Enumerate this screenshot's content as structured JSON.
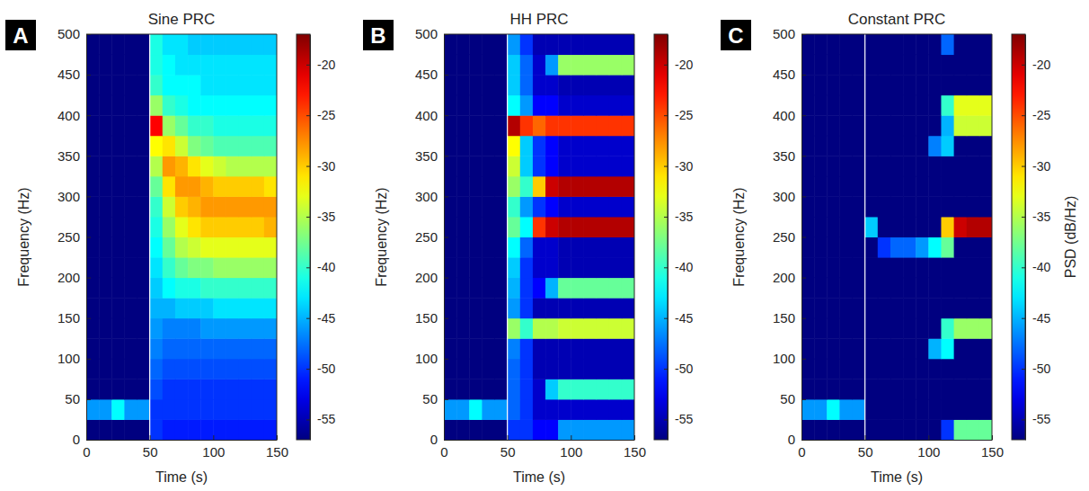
{
  "chart_data": [
    {
      "type": "heatmap",
      "panel": "A",
      "title": "Sine PRC",
      "x_label": "Time (s)",
      "y_label": "Frequency (Hz)",
      "xlim": [
        0,
        150
      ],
      "xticks": [
        0,
        50,
        100,
        150
      ],
      "ylim": [
        0,
        500
      ],
      "yticks": [
        0,
        50,
        100,
        150,
        200,
        250,
        300,
        350,
        400,
        450,
        500
      ],
      "vline": 50,
      "x": [
        5,
        15,
        25,
        35,
        45,
        55,
        65,
        75,
        85,
        95,
        105,
        115,
        125,
        135,
        145
      ],
      "y": [
        12.5,
        37.5,
        62.5,
        87.5,
        112.5,
        137.5,
        162.5,
        187.5,
        212.5,
        237.5,
        262.5,
        287.5,
        312.5,
        337.5,
        362.5,
        387.5,
        412.5,
        437.5,
        462.5,
        487.5
      ],
      "z": [
        [
          -57,
          -57,
          -57,
          -57,
          -57,
          -50,
          -51,
          -51,
          -51,
          -51,
          -51,
          -51,
          -51,
          -51,
          -51
        ],
        [
          -46,
          -46,
          -42,
          -46,
          -46,
          -50,
          -50,
          -50,
          -50,
          -50,
          -50,
          -50,
          -50,
          -50,
          -50
        ],
        [
          -57,
          -57,
          -57,
          -57,
          -57,
          -49,
          -50,
          -50,
          -50,
          -50,
          -50,
          -50,
          -50,
          -50,
          -50
        ],
        [
          -57,
          -57,
          -57,
          -57,
          -57,
          -48,
          -49,
          -49,
          -49,
          -49,
          -49,
          -49,
          -49,
          -49,
          -49
        ],
        [
          -57,
          -57,
          -57,
          -57,
          -57,
          -47,
          -48,
          -48,
          -48,
          -48,
          -48,
          -48,
          -48,
          -48,
          -48
        ],
        [
          -57,
          -57,
          -57,
          -57,
          -57,
          -46,
          -47,
          -47,
          -47,
          -46,
          -46,
          -46,
          -46,
          -46,
          -46
        ],
        [
          -57,
          -57,
          -57,
          -57,
          -57,
          -45,
          -45,
          -44,
          -44,
          -44,
          -43,
          -43,
          -43,
          -43,
          -43
        ],
        [
          -57,
          -57,
          -57,
          -57,
          -57,
          -44,
          -42,
          -41,
          -41,
          -40,
          -40,
          -40,
          -40,
          -40,
          -40
        ],
        [
          -57,
          -57,
          -57,
          -57,
          -57,
          -43,
          -40,
          -38,
          -37,
          -37,
          -36,
          -36,
          -36,
          -36,
          -36
        ],
        [
          -57,
          -57,
          -57,
          -57,
          -57,
          -42,
          -38,
          -35,
          -34,
          -33,
          -33,
          -33,
          -33,
          -33,
          -33
        ],
        [
          -57,
          -57,
          -57,
          -57,
          -57,
          -41,
          -36,
          -33,
          -31,
          -30,
          -30,
          -30,
          -30,
          -30,
          -29
        ],
        [
          -57,
          -57,
          -57,
          -57,
          -57,
          -40,
          -34,
          -30,
          -29,
          -28,
          -28,
          -28,
          -28,
          -28,
          -28
        ],
        [
          -57,
          -57,
          -57,
          -57,
          -57,
          -38,
          -31,
          -28,
          -28,
          -29,
          -30,
          -30,
          -30,
          -30,
          -31
        ],
        [
          -57,
          -57,
          -57,
          -57,
          -57,
          -35,
          -28,
          -29,
          -31,
          -33,
          -34,
          -35,
          -35,
          -35,
          -35
        ],
        [
          -57,
          -57,
          -57,
          -57,
          -57,
          -32,
          -31,
          -34,
          -37,
          -38,
          -39,
          -39,
          -39,
          -39,
          -39
        ],
        [
          -57,
          -57,
          -57,
          -57,
          -57,
          -22,
          -36,
          -38,
          -40,
          -40,
          -41,
          -41,
          -41,
          -41,
          -41
        ],
        [
          -57,
          -57,
          -57,
          -57,
          -57,
          -36,
          -40,
          -41,
          -42,
          -42,
          -42,
          -42,
          -42,
          -42,
          -42
        ],
        [
          -57,
          -57,
          -57,
          -57,
          -57,
          -40,
          -42,
          -42,
          -42,
          -43,
          -43,
          -43,
          -43,
          -43,
          -43
        ],
        [
          -57,
          -57,
          -57,
          -57,
          -57,
          -41,
          -42,
          -43,
          -43,
          -43,
          -43,
          -43,
          -43,
          -43,
          -43
        ],
        [
          -57,
          -57,
          -57,
          -57,
          -57,
          -41,
          -43,
          -43,
          -44,
          -44,
          -44,
          -44,
          -44,
          -44,
          -44
        ]
      ],
      "colorbar_range": [
        -57,
        -17
      ],
      "colorbar_ticks": [
        -55,
        -50,
        -45,
        -40,
        -35,
        -30,
        -25,
        -20
      ]
    },
    {
      "type": "heatmap",
      "panel": "B",
      "title": "HH PRC",
      "x_label": "Time (s)",
      "y_label": "Frequency (Hz)",
      "xlim": [
        0,
        150
      ],
      "xticks": [
        0,
        50,
        100,
        150
      ],
      "ylim": [
        0,
        500
      ],
      "yticks": [
        0,
        50,
        100,
        150,
        200,
        250,
        300,
        350,
        400,
        450,
        500
      ],
      "vline": 50,
      "x": [
        5,
        15,
        25,
        35,
        45,
        55,
        65,
        75,
        85,
        95,
        105,
        115,
        125,
        135,
        145
      ],
      "y": [
        12.5,
        37.5,
        62.5,
        87.5,
        112.5,
        137.5,
        162.5,
        187.5,
        212.5,
        237.5,
        262.5,
        287.5,
        312.5,
        337.5,
        362.5,
        387.5,
        412.5,
        437.5,
        462.5,
        487.5
      ],
      "z": [
        [
          -57,
          -57,
          -57,
          -57,
          -57,
          -50,
          -50,
          -52,
          -52,
          -46,
          -46,
          -46,
          -46,
          -46,
          -46
        ],
        [
          -46,
          -46,
          -42,
          -46,
          -46,
          -48,
          -50,
          -54,
          -54,
          -54,
          -54,
          -54,
          -54,
          -54,
          -54
        ],
        [
          -57,
          -57,
          -57,
          -57,
          -57,
          -48,
          -50,
          -54,
          -44,
          -40,
          -40,
          -40,
          -40,
          -40,
          -40
        ],
        [
          -57,
          -57,
          -57,
          -57,
          -57,
          -48,
          -50,
          -55,
          -55,
          -55,
          -55,
          -55,
          -55,
          -55,
          -55
        ],
        [
          -57,
          -57,
          -57,
          -57,
          -57,
          -47,
          -50,
          -55,
          -55,
          -55,
          -55,
          -55,
          -55,
          -55,
          -55
        ],
        [
          -57,
          -57,
          -57,
          -57,
          -57,
          -36,
          -40,
          -35,
          -35,
          -34,
          -34,
          -34,
          -34,
          -34,
          -34
        ],
        [
          -57,
          -57,
          -57,
          -57,
          -57,
          -46,
          -50,
          -55,
          -55,
          -55,
          -55,
          -55,
          -55,
          -55,
          -55
        ],
        [
          -57,
          -57,
          -57,
          -57,
          -57,
          -45,
          -50,
          -52,
          -45,
          -38,
          -38,
          -38,
          -38,
          -38,
          -38
        ],
        [
          -57,
          -57,
          -57,
          -57,
          -57,
          -44,
          -50,
          -54,
          -54,
          -55,
          -55,
          -55,
          -55,
          -55,
          -55
        ],
        [
          -57,
          -57,
          -57,
          -57,
          -57,
          -42,
          -48,
          -54,
          -54,
          -55,
          -55,
          -55,
          -55,
          -55,
          -55
        ],
        [
          -57,
          -57,
          -57,
          -57,
          -57,
          -38,
          -42,
          -24,
          -20,
          -19,
          -19,
          -19,
          -19,
          -19,
          -19
        ],
        [
          -57,
          -57,
          -57,
          -57,
          -57,
          -40,
          -46,
          -50,
          -52,
          -54,
          -54,
          -54,
          -54,
          -54,
          -54
        ],
        [
          -57,
          -57,
          -57,
          -57,
          -57,
          -36,
          -40,
          -30,
          -20,
          -19,
          -19,
          -19,
          -19,
          -19,
          -19
        ],
        [
          -57,
          -57,
          -57,
          -57,
          -57,
          -34,
          -44,
          -50,
          -52,
          -54,
          -54,
          -54,
          -54,
          -54,
          -54
        ],
        [
          -57,
          -57,
          -57,
          -57,
          -57,
          -32,
          -44,
          -50,
          -52,
          -54,
          -54,
          -54,
          -54,
          -54,
          -54
        ],
        [
          -57,
          -57,
          -57,
          -57,
          -57,
          -19,
          -24,
          -26,
          -24,
          -24,
          -24,
          -24,
          -24,
          -24,
          -24
        ],
        [
          -57,
          -57,
          -57,
          -57,
          -57,
          -42,
          -46,
          -52,
          -52,
          -54,
          -54,
          -54,
          -54,
          -54,
          -54
        ],
        [
          -57,
          -57,
          -57,
          -57,
          -57,
          -44,
          -48,
          -54,
          -54,
          -55,
          -55,
          -55,
          -55,
          -55,
          -55
        ],
        [
          -57,
          -57,
          -57,
          -57,
          -57,
          -44,
          -48,
          -54,
          -46,
          -36,
          -36,
          -36,
          -36,
          -36,
          -36
        ],
        [
          -57,
          -57,
          -57,
          -57,
          -57,
          -46,
          -50,
          -55,
          -55,
          -55,
          -55,
          -55,
          -55,
          -55,
          -55
        ]
      ],
      "colorbar_range": [
        -57,
        -17
      ],
      "colorbar_ticks": [
        -55,
        -50,
        -45,
        -40,
        -35,
        -30,
        -25,
        -20
      ]
    },
    {
      "type": "heatmap",
      "panel": "C",
      "title": "Constant PRC",
      "x_label": "Time (s)",
      "y_label": "Frequency (Hz)",
      "xlim": [
        0,
        150
      ],
      "xticks": [
        0,
        50,
        100,
        150
      ],
      "ylim": [
        0,
        500
      ],
      "yticks": [
        0,
        50,
        100,
        150,
        200,
        250,
        300,
        350,
        400,
        450,
        500
      ],
      "vline": 50,
      "x": [
        5,
        15,
        25,
        35,
        45,
        55,
        65,
        75,
        85,
        95,
        105,
        115,
        125,
        135,
        145
      ],
      "y": [
        12.5,
        37.5,
        62.5,
        87.5,
        112.5,
        137.5,
        162.5,
        187.5,
        212.5,
        237.5,
        262.5,
        287.5,
        312.5,
        337.5,
        362.5,
        387.5,
        412.5,
        437.5,
        462.5,
        487.5
      ],
      "z": [
        [
          -57,
          -57,
          -57,
          -57,
          -57,
          -57,
          -57,
          -57,
          -57,
          -57,
          -57,
          -50,
          -38,
          -38,
          -38
        ],
        [
          -46,
          -46,
          -42,
          -46,
          -46,
          -57,
          -57,
          -57,
          -57,
          -57,
          -57,
          -57,
          -57,
          -57,
          -57
        ],
        [
          -57,
          -57,
          -57,
          -57,
          -57,
          -57,
          -57,
          -57,
          -57,
          -57,
          -57,
          -57,
          -57,
          -57,
          -57
        ],
        [
          -57,
          -57,
          -57,
          -57,
          -57,
          -57,
          -57,
          -57,
          -57,
          -57,
          -57,
          -57,
          -57,
          -57,
          -57
        ],
        [
          -57,
          -57,
          -57,
          -57,
          -57,
          -57,
          -57,
          -57,
          -57,
          -57,
          -45,
          -42,
          -57,
          -57,
          -57
        ],
        [
          -57,
          -57,
          -57,
          -57,
          -57,
          -57,
          -57,
          -57,
          -57,
          -57,
          -57,
          -40,
          -36,
          -36,
          -36
        ],
        [
          -57,
          -57,
          -57,
          -57,
          -57,
          -57,
          -57,
          -57,
          -57,
          -57,
          -57,
          -57,
          -57,
          -57,
          -57
        ],
        [
          -57,
          -57,
          -57,
          -57,
          -57,
          -57,
          -57,
          -57,
          -57,
          -57,
          -57,
          -57,
          -57,
          -57,
          -57
        ],
        [
          -57,
          -57,
          -57,
          -57,
          -57,
          -57,
          -57,
          -57,
          -57,
          -57,
          -57,
          -57,
          -57,
          -57,
          -57
        ],
        [
          -57,
          -57,
          -57,
          -57,
          -57,
          -57,
          -50,
          -48,
          -48,
          -46,
          -42,
          -38,
          -57,
          -57,
          -57
        ],
        [
          -57,
          -57,
          -57,
          -57,
          -57,
          -44,
          -57,
          -57,
          -57,
          -57,
          -57,
          -30,
          -20,
          -19,
          -19
        ],
        [
          -57,
          -57,
          -57,
          -57,
          -57,
          -57,
          -57,
          -57,
          -57,
          -57,
          -57,
          -57,
          -57,
          -57,
          -57
        ],
        [
          -57,
          -57,
          -57,
          -57,
          -57,
          -57,
          -57,
          -57,
          -57,
          -57,
          -57,
          -57,
          -57,
          -57,
          -57
        ],
        [
          -57,
          -57,
          -57,
          -57,
          -57,
          -57,
          -57,
          -57,
          -57,
          -57,
          -57,
          -57,
          -57,
          -57,
          -57
        ],
        [
          -57,
          -57,
          -57,
          -57,
          -57,
          -57,
          -57,
          -57,
          -57,
          -57,
          -47,
          -44,
          -57,
          -57,
          -57
        ],
        [
          -57,
          -57,
          -57,
          -57,
          -57,
          -57,
          -57,
          -57,
          -57,
          -57,
          -57,
          -45,
          -34,
          -34,
          -34
        ],
        [
          -57,
          -57,
          -57,
          -57,
          -57,
          -57,
          -57,
          -57,
          -57,
          -57,
          -57,
          -40,
          -33,
          -33,
          -33
        ],
        [
          -57,
          -57,
          -57,
          -57,
          -57,
          -57,
          -57,
          -57,
          -57,
          -57,
          -57,
          -57,
          -57,
          -57,
          -57
        ],
        [
          -57,
          -57,
          -57,
          -57,
          -57,
          -57,
          -57,
          -57,
          -57,
          -57,
          -57,
          -57,
          -57,
          -57,
          -57
        ],
        [
          -57,
          -57,
          -57,
          -57,
          -57,
          -57,
          -57,
          -57,
          -57,
          -57,
          -57,
          -48,
          -57,
          -57,
          -57
        ]
      ],
      "colorbar_range": [
        -57,
        -17
      ],
      "colorbar_ticks": [
        -55,
        -50,
        -45,
        -40,
        -35,
        -30,
        -25,
        -20
      ],
      "colorbar_label": "PSD (dB/Hz)"
    }
  ]
}
